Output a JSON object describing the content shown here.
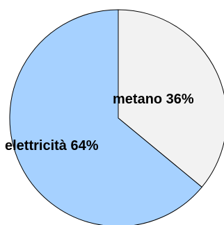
{
  "chart_data": {
    "type": "pie",
    "start": "top",
    "direction": "clockwise",
    "slices": [
      {
        "label": "metano 36%",
        "value": 36,
        "color": "#f2f2f2"
      },
      {
        "label": "elettricità 64%",
        "value": 64,
        "color": "#a6d1ff"
      }
    ],
    "colors": {
      "outline": "#000000",
      "background": "#ffffff"
    }
  }
}
